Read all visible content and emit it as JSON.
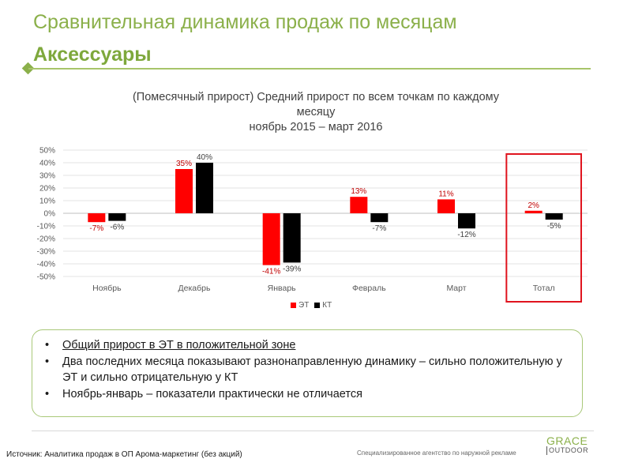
{
  "slide": {
    "title": "Сравнительная динамика продаж по месяцам",
    "subtitle": "Аксессуары"
  },
  "chart_data": {
    "type": "bar",
    "title_lines": [
      "(Помесячный прирост) Средний прирост по всем точкам по каждому",
      "месяцу",
      "ноябрь 2015 – март 2016"
    ],
    "categories": [
      "Ноябрь",
      "Декабрь",
      "Январь",
      "Февраль",
      "Март",
      "Тотал"
    ],
    "series": [
      {
        "name": "ЭТ",
        "color": "#ff0000",
        "values": [
          -7,
          35,
          -41,
          13,
          11,
          2
        ]
      },
      {
        "name": "КТ",
        "color": "#000000",
        "values": [
          -6,
          40,
          -39,
          -7,
          -12,
          -5
        ]
      }
    ],
    "data_labels": {
      "ЭТ": [
        "-7%",
        "35%",
        "-41%",
        "13%",
        "11%",
        "2%"
      ],
      "КТ": [
        "-6%",
        "40%",
        "-39%",
        "-7%",
        "-12%",
        "-5%"
      ]
    },
    "ylim": [
      -50,
      50
    ],
    "yticks": [
      "50%",
      "40%",
      "30%",
      "20%",
      "10%",
      "0%",
      "-10%",
      "-20%",
      "-30%",
      "-40%",
      "-50%"
    ],
    "grid": true,
    "legend_position": "bottom",
    "highlight_category": "Тотал",
    "highlight_color": "#e0141e"
  },
  "bullets": [
    "Общий прирост  в ЭТ в положительной зоне",
    "Два последних месяца показывают разнонаправленную динамику – сильно положительную у ЭТ и сильно отрицательную у КТ",
    "Ноябрь-январь – показатели практически не отличается"
  ],
  "footer": {
    "source": "Источник: Аналитика продаж в ОП Арома-маркетинг (без акций)",
    "agency": "Специализированное агентство по наружной рекламе",
    "logo_top": "GRACE",
    "logo_bottom": "OUTDOOR"
  }
}
